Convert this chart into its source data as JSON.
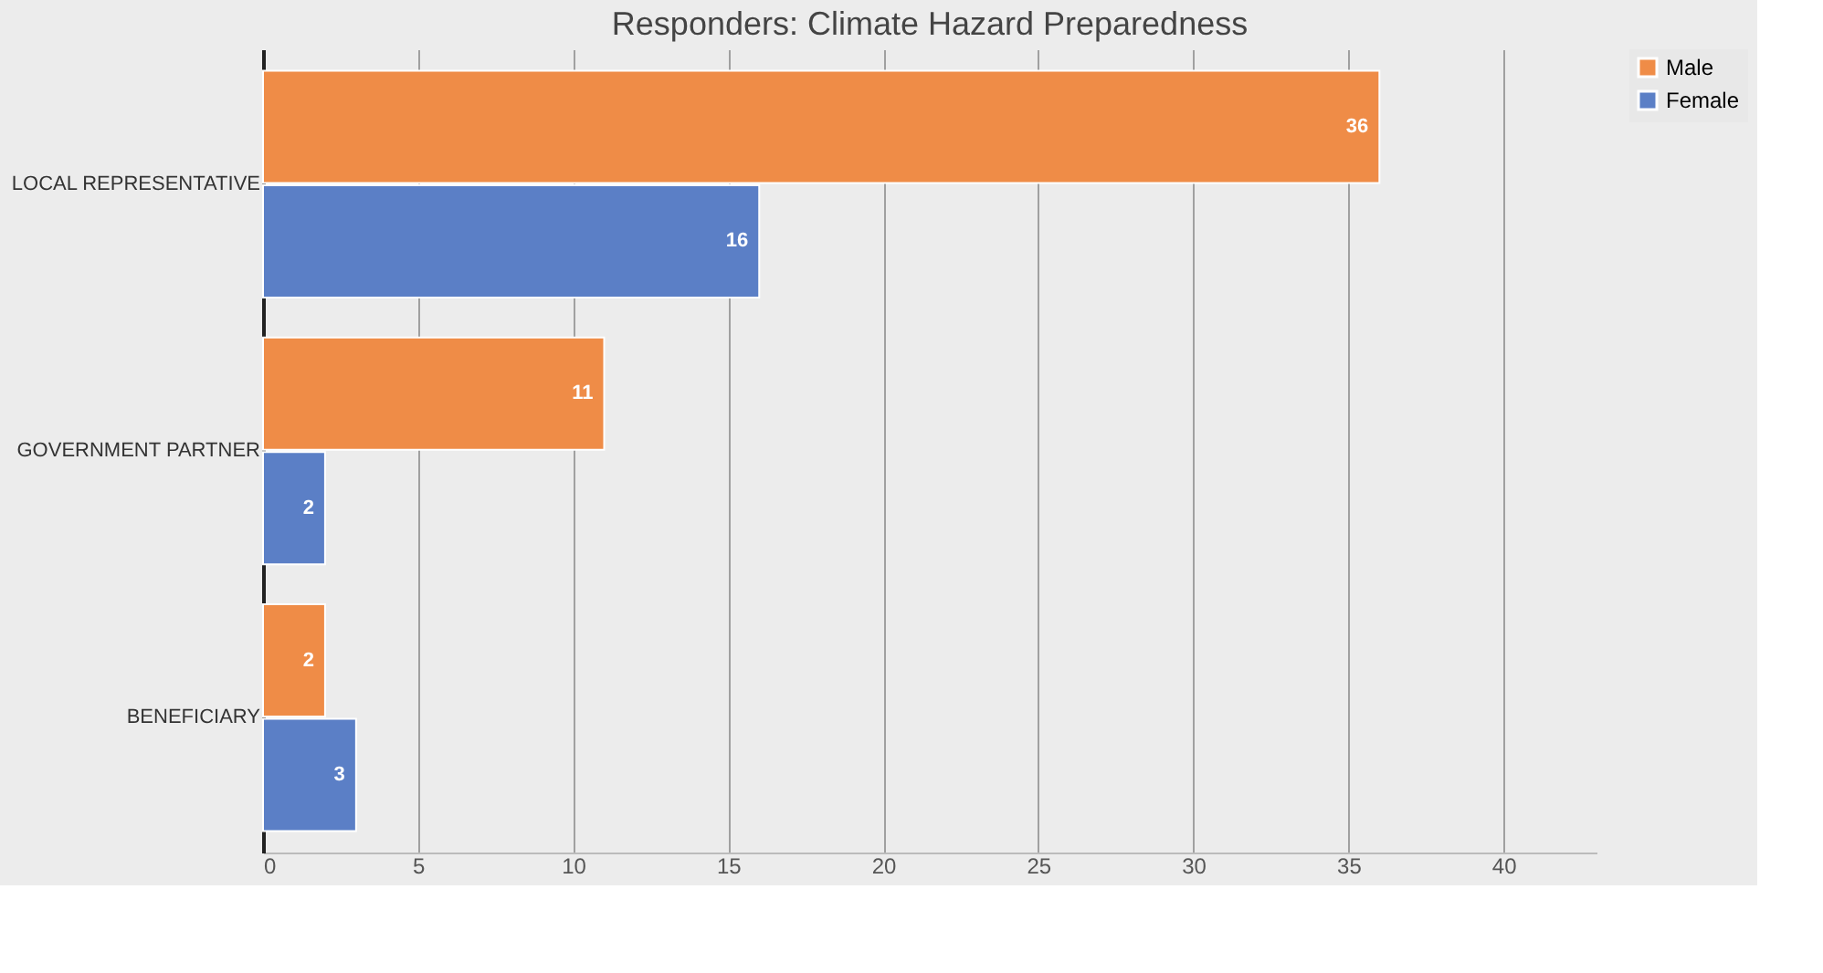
{
  "chart_data": {
    "type": "bar",
    "orientation": "horizontal",
    "title": "Responders: Climate Hazard Preparedness",
    "categories": [
      "LOCAL REPRESENTATIVE",
      "GOVERNMENT PARTNER",
      "BENEFICIARY"
    ],
    "series": [
      {
        "name": "Male",
        "color": "#ef8c47",
        "values": [
          36,
          11,
          2
        ]
      },
      {
        "name": "Female",
        "color": "#5b7fc6",
        "values": [
          16,
          2,
          3
        ]
      }
    ],
    "xlim": [
      0,
      43
    ],
    "xticks": [
      0,
      5,
      10,
      15,
      20,
      25,
      30,
      35,
      40
    ],
    "grid": "x",
    "legend": "right",
    "data_labels": true
  }
}
